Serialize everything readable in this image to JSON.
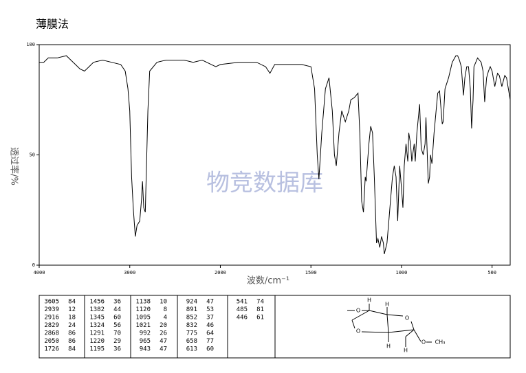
{
  "chart_data": {
    "type": "line",
    "title": "薄膜法",
    "xlabel": "波数/cm⁻¹",
    "ylabel": "透过率/%",
    "watermark": "物竞数据库",
    "color": "#000000",
    "xlim": [
      4000,
      400
    ],
    "xticks": [
      4000,
      3000,
      2000,
      1500,
      1000,
      500
    ],
    "ylim": [
      0,
      100
    ],
    "yticks": [
      0,
      50,
      100
    ],
    "x": [
      4000,
      3950,
      3900,
      3800,
      3700,
      3650,
      3600,
      3550,
      3500,
      3450,
      3400,
      3300,
      3200,
      3100,
      3050,
      3020,
      3000,
      2980,
      2960,
      2939,
      2920,
      2890,
      2870,
      2860,
      2845,
      2829,
      2800,
      2780,
      2700,
      2600,
      2500,
      2400,
      2300,
      2200,
      2100,
      2050,
      2000,
      1900,
      1800,
      1750,
      1726,
      1700,
      1600,
      1550,
      1500,
      1480,
      1465,
      1456,
      1440,
      1420,
      1400,
      1382,
      1370,
      1360,
      1345,
      1330,
      1310,
      1291,
      1280,
      1260,
      1240,
      1230,
      1220,
      1210,
      1200,
      1195,
      1180,
      1170,
      1160,
      1150,
      1138,
      1130,
      1120,
      1110,
      1100,
      1095,
      1080,
      1070,
      1060,
      1050,
      1040,
      1030,
      1021,
      1010,
      1000,
      992,
      985,
      975,
      965,
      960,
      950,
      943,
      930,
      924,
      915,
      900,
      891,
      880,
      870,
      865,
      852,
      845,
      840,
      832,
      820,
      800,
      790,
      775,
      770,
      760,
      740,
      720,
      700,
      690,
      680,
      670,
      658,
      650,
      640,
      630,
      620,
      613,
      605,
      600,
      580,
      560,
      550,
      541,
      530,
      520,
      510,
      500,
      485,
      470,
      460,
      446,
      430,
      420,
      400
    ],
    "values": [
      92,
      92,
      94,
      94,
      95,
      93,
      91,
      89,
      88,
      90,
      92,
      93,
      92,
      91,
      88,
      80,
      70,
      40,
      25,
      13,
      18,
      20,
      30,
      38,
      26,
      24,
      70,
      88,
      92,
      93,
      93,
      93,
      92,
      93,
      91,
      90,
      91,
      92,
      92,
      90,
      87,
      91,
      91,
      91,
      90,
      80,
      50,
      39,
      60,
      80,
      85,
      70,
      50,
      45,
      60,
      70,
      65,
      70,
      75,
      76,
      78,
      60,
      29,
      24,
      40,
      38,
      55,
      63,
      60,
      40,
      10,
      12,
      8,
      13,
      10,
      5,
      10,
      20,
      30,
      40,
      45,
      40,
      20,
      45,
      35,
      26,
      45,
      55,
      47,
      60,
      55,
      47,
      55,
      47,
      60,
      73,
      53,
      50,
      55,
      67,
      37,
      40,
      50,
      46,
      60,
      78,
      79,
      64,
      65,
      80,
      85,
      92,
      95,
      95,
      93,
      90,
      77,
      85,
      90,
      90,
      80,
      62,
      75,
      90,
      94,
      92,
      88,
      74,
      85,
      88,
      90,
      88,
      81,
      87,
      86,
      81,
      86,
      85,
      75
    ]
  },
  "peak_table": [
    [
      [
        3605,
        84
      ],
      [
        2939,
        12
      ],
      [
        2916,
        18
      ],
      [
        2829,
        24
      ],
      [
        2868,
        86
      ],
      [
        2050,
        86
      ],
      [
        1726,
        84
      ]
    ],
    [
      [
        1456,
        36
      ],
      [
        1382,
        44
      ],
      [
        1345,
        60
      ],
      [
        1324,
        56
      ],
      [
        1291,
        70
      ],
      [
        1220,
        29
      ],
      [
        1195,
        36
      ]
    ],
    [
      [
        1138,
        10
      ],
      [
        1120,
        8
      ],
      [
        1095,
        4
      ],
      [
        1021,
        20
      ],
      [
        992,
        26
      ],
      [
        965,
        47
      ],
      [
        943,
        47
      ]
    ],
    [
      [
        924,
        47
      ],
      [
        891,
        53
      ],
      [
        852,
        37
      ],
      [
        832,
        46
      ],
      [
        775,
        64
      ],
      [
        658,
        77
      ],
      [
        613,
        60
      ]
    ],
    [
      [
        541,
        74
      ],
      [
        485,
        81
      ],
      [
        446,
        61
      ]
    ]
  ],
  "structure": {
    "labels": [
      "H",
      "O",
      "H",
      "O",
      "O",
      "H",
      "O",
      "H",
      "CH₃"
    ]
  }
}
